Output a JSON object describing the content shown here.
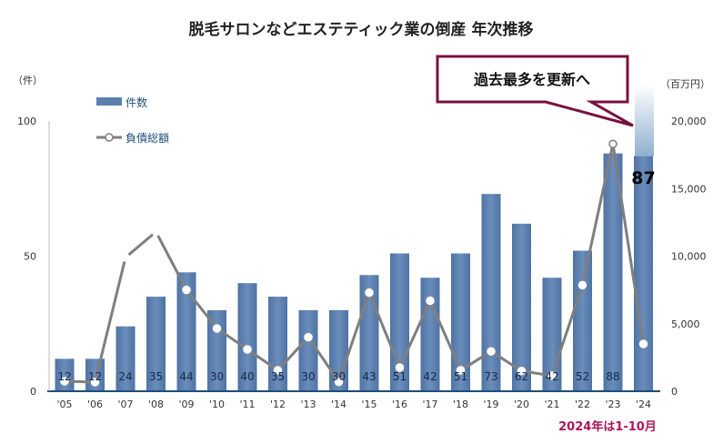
{
  "chart_data": {
    "type": "bar+line",
    "title": "脱毛サロンなどエステティック業の倒産 年次推移",
    "left_unit": "（件）",
    "right_unit": "（百万円）",
    "left_ylim": [
      0,
      100
    ],
    "left_ticks": [
      "0",
      "50",
      "100"
    ],
    "right_ylim": [
      0,
      20000
    ],
    "right_ticks": [
      "0",
      "5,000",
      "10,000",
      "15,000",
      "20,000"
    ],
    "categories": [
      "'05",
      "'06",
      "'07",
      "'08",
      "'09",
      "'10",
      "'11",
      "'12",
      "'13",
      "'14",
      "'15",
      "'16",
      "'17",
      "'18",
      "'19",
      "'20",
      "'21",
      "'22",
      "'23",
      "'24"
    ],
    "series": [
      {
        "name": "件数",
        "type": "bar",
        "color": "#5b7fae",
        "values": [
          12,
          12,
          24,
          35,
          44,
          30,
          40,
          35,
          30,
          30,
          43,
          51,
          42,
          51,
          73,
          62,
          42,
          52,
          88,
          87
        ]
      },
      {
        "name": "負債総額",
        "type": "line",
        "color": "#7f7f7f",
        "values": [
          740,
          670,
          9900,
          11800,
          7500,
          4650,
          3100,
          1550,
          4000,
          700,
          7300,
          1750,
          6700,
          1550,
          2950,
          1500,
          1150,
          7850,
          18300,
          3500
        ]
      }
    ],
    "data_labels": [
      "12",
      "12",
      "24",
      "35",
      "44",
      "30",
      "40",
      "35",
      "30",
      "30",
      "43",
      "51",
      "42",
      "51",
      "73",
      "62",
      "42",
      "52",
      "88",
      "87"
    ],
    "callout": "過去最多を更新へ",
    "footnote": "2024年は1-10月",
    "legend_placement": "top-left",
    "grid": false
  }
}
